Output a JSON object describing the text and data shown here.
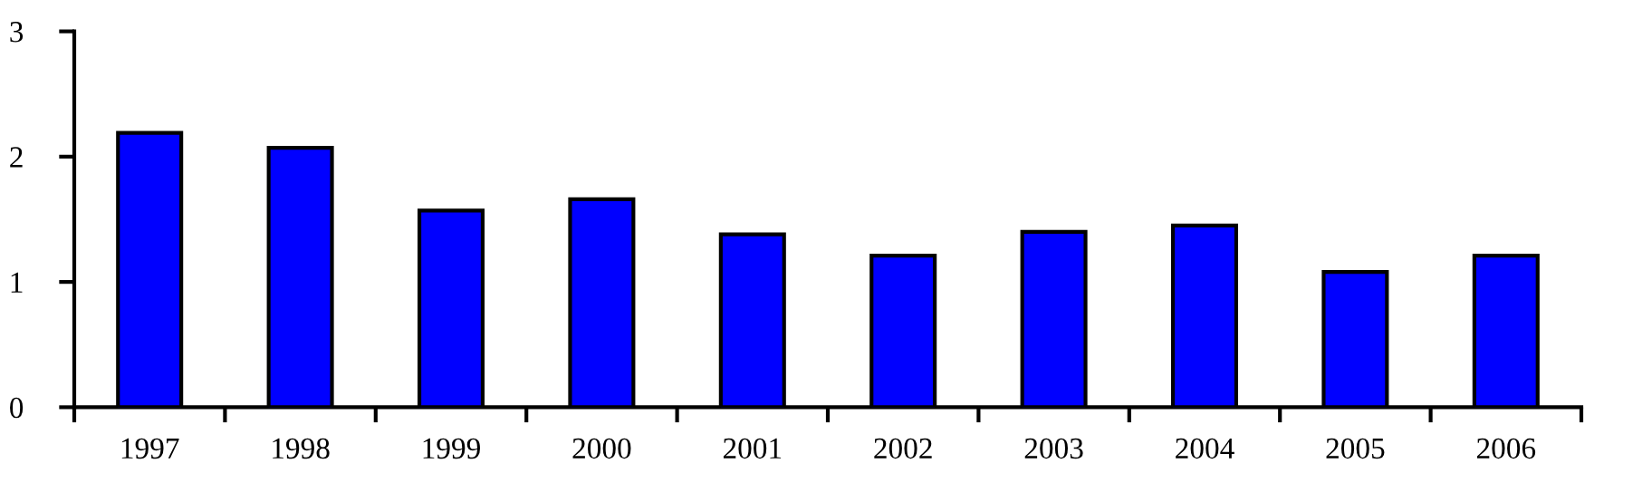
{
  "chart_data": {
    "type": "bar",
    "categories": [
      "1997",
      "1998",
      "1999",
      "2000",
      "2001",
      "2002",
      "2003",
      "2004",
      "2005",
      "2006"
    ],
    "values": [
      2.19,
      2.07,
      1.57,
      1.66,
      1.38,
      1.21,
      1.4,
      1.45,
      1.08,
      1.21
    ],
    "color": "#0000ff",
    "ylim": [
      0,
      3
    ],
    "yticks": [
      0,
      1,
      2,
      3
    ],
    "grid": false
  }
}
